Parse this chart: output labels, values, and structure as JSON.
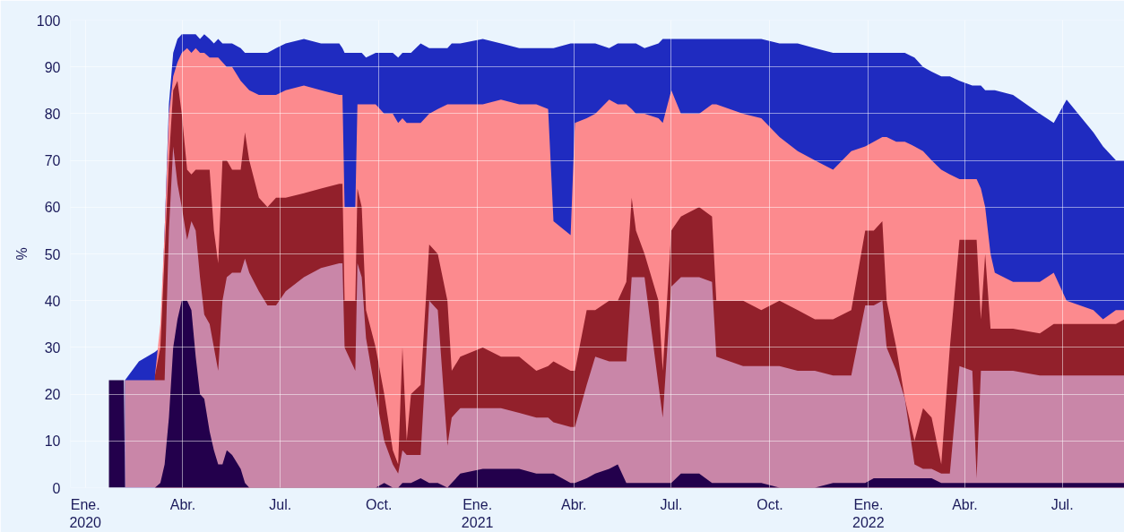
{
  "chart_data": {
    "type": "area",
    "ylabel": "%",
    "ylim": [
      0,
      100
    ],
    "yticks": [
      0,
      10,
      20,
      30,
      40,
      50,
      60,
      70,
      80,
      90,
      100
    ],
    "xlim": [
      "2019-12-18",
      "2022-08-28"
    ],
    "xticks": [
      {
        "value": "2020-01-01",
        "label": "Ene.\n2020"
      },
      {
        "value": "2020-04-01",
        "label": "Abr."
      },
      {
        "value": "2020-07-01",
        "label": "Jul."
      },
      {
        "value": "2020-10-01",
        "label": "Oct."
      },
      {
        "value": "2021-01-01",
        "label": "Ene.\n2021"
      },
      {
        "value": "2021-04-01",
        "label": "Abr."
      },
      {
        "value": "2021-07-01",
        "label": "Jul."
      },
      {
        "value": "2021-10-01",
        "label": "Oct."
      },
      {
        "value": "2022-01-01",
        "label": "Ene.\n2022"
      },
      {
        "value": "2022-04-01",
        "label": "Abr."
      },
      {
        "value": "2022-07-01",
        "label": "Jul."
      }
    ],
    "grid": true,
    "x": [
      "2020-01-23",
      "2020-02-06",
      "2020-02-07",
      "2020-02-20",
      "2020-03-06",
      "2020-03-11",
      "2020-03-15",
      "2020-03-19",
      "2020-03-23",
      "2020-03-27",
      "2020-03-31",
      "2020-04-05",
      "2020-04-09",
      "2020-04-13",
      "2020-04-17",
      "2020-04-21",
      "2020-04-26",
      "2020-04-30",
      "2020-05-04",
      "2020-05-08",
      "2020-05-12",
      "2020-05-17",
      "2020-05-25",
      "2020-05-29",
      "2020-06-02",
      "2020-06-11",
      "2020-06-19",
      "2020-06-27",
      "2020-07-06",
      "2020-07-23",
      "2020-08-08",
      "2020-08-25",
      "2020-08-28",
      "2020-08-30",
      "2020-09-09",
      "2020-09-11",
      "2020-09-15",
      "2020-09-19",
      "2020-09-28",
      "2020-10-06",
      "2020-10-14",
      "2020-10-19",
      "2020-10-23",
      "2020-10-27",
      "2020-10-31",
      "2020-11-09",
      "2020-11-17",
      "2020-11-25",
      "2020-12-04",
      "2020-12-08",
      "2020-12-16",
      "2021-01-06",
      "2021-01-23",
      "2021-02-09",
      "2021-02-25",
      "2021-03-08",
      "2021-03-13",
      "2021-03-29",
      "2021-04-02",
      "2021-04-13",
      "2021-04-21",
      "2021-05-04",
      "2021-05-12",
      "2021-05-20",
      "2021-05-25",
      "2021-05-29",
      "2021-06-06",
      "2021-06-19",
      "2021-06-23",
      "2021-07-01",
      "2021-07-10",
      "2021-07-27",
      "2021-08-08",
      "2021-08-12",
      "2021-09-06",
      "2021-09-23",
      "2021-10-10",
      "2021-10-27",
      "2021-11-12",
      "2021-11-29",
      "2021-12-16",
      "2021-12-29",
      "2022-01-06",
      "2022-01-14",
      "2022-01-18",
      "2022-01-27",
      "2022-02-04",
      "2022-02-13",
      "2022-02-21",
      "2022-03-01",
      "2022-03-10",
      "2022-03-18",
      "2022-03-27",
      "2022-04-08",
      "2022-04-12",
      "2022-04-16",
      "2022-04-20",
      "2022-04-25",
      "2022-04-29",
      "2022-05-16",
      "2022-06-10",
      "2022-06-23",
      "2022-07-05",
      "2022-07-30",
      "2022-08-08",
      "2022-08-20",
      "2022-08-28"
    ],
    "series": [
      {
        "color": "#1f2bc0",
        "values": [
          null,
          null,
          23,
          27,
          29,
          30,
          55,
          82,
          93,
          96,
          97,
          97,
          97,
          97,
          96,
          97,
          96,
          95,
          96,
          95,
          95,
          95,
          94,
          93,
          93,
          93,
          93,
          94,
          95,
          96,
          95,
          95,
          94,
          93,
          93,
          93,
          93,
          92,
          93,
          93,
          93,
          92,
          93,
          93,
          93,
          95,
          94,
          94,
          94,
          95,
          95,
          96,
          95,
          94,
          94,
          94,
          94,
          95,
          95,
          95,
          95,
          94,
          95,
          95,
          95,
          95,
          94,
          95,
          96,
          96,
          96,
          96,
          96,
          96,
          96,
          96,
          95,
          95,
          94,
          93,
          93,
          93,
          93,
          93,
          93,
          93,
          93,
          92,
          90,
          89,
          88,
          88,
          87,
          86,
          86,
          86,
          85,
          85,
          85,
          84,
          80,
          78,
          83,
          76,
          73,
          70,
          70
        ]
      },
      {
        "color": "#fc8a8e",
        "values": [
          null,
          null,
          null,
          null,
          24,
          35,
          55,
          80,
          88,
          91,
          93,
          94,
          93,
          94,
          93,
          93,
          92,
          92,
          92,
          91,
          90,
          90,
          87,
          86,
          85,
          84,
          84,
          84,
          85,
          86,
          85,
          84,
          84,
          60,
          60,
          82,
          82,
          82,
          82,
          80,
          80,
          78,
          79,
          78,
          78,
          78,
          80,
          81,
          82,
          82,
          82,
          82,
          83,
          82,
          82,
          81,
          57,
          54,
          78,
          79,
          80,
          83,
          82,
          82,
          81,
          80,
          80,
          79,
          78,
          85,
          80,
          80,
          82,
          82,
          80,
          79,
          75,
          72,
          70,
          68,
          72,
          73,
          74,
          75,
          75,
          74,
          74,
          73,
          72,
          70,
          68,
          67,
          66,
          66,
          66,
          64,
          60,
          50,
          46,
          44,
          44,
          46,
          40,
          38,
          36,
          38,
          38
        ]
      },
      {
        "color": "#92202b",
        "values": [
          null,
          null,
          null,
          null,
          24,
          30,
          50,
          70,
          85,
          87,
          80,
          68,
          67,
          68,
          68,
          68,
          68,
          55,
          48,
          70,
          70,
          68,
          68,
          76,
          70,
          62,
          60,
          62,
          62,
          63,
          64,
          65,
          65,
          40,
          40,
          64,
          60,
          38,
          30,
          20,
          8,
          5,
          30,
          10,
          20,
          22,
          52,
          50,
          40,
          25,
          28,
          30,
          28,
          28,
          25,
          26,
          27,
          25,
          25,
          38,
          38,
          40,
          40,
          44,
          62,
          55,
          50,
          40,
          25,
          55,
          58,
          60,
          58,
          40,
          40,
          38,
          40,
          38,
          36,
          36,
          38,
          55,
          55,
          57,
          40,
          30,
          19,
          10,
          17,
          15,
          5,
          30,
          53,
          53,
          53,
          36,
          50,
          34,
          34,
          34,
          33,
          35,
          35,
          35,
          35,
          35,
          36
        ]
      },
      {
        "color": "#c986a8",
        "values": [
          null,
          null,
          23,
          23,
          23,
          23,
          23,
          55,
          73,
          65,
          60,
          53,
          57,
          55,
          45,
          37,
          35,
          30,
          25,
          40,
          45,
          46,
          46,
          49,
          46,
          42,
          39,
          39,
          42,
          45,
          47,
          48,
          48,
          30,
          25,
          48,
          45,
          32,
          20,
          10,
          5,
          3,
          8,
          7,
          7,
          7,
          40,
          38,
          9,
          15,
          17,
          17,
          17,
          16,
          15,
          15,
          14,
          13,
          13,
          22,
          28,
          27,
          27,
          27,
          45,
          45,
          45,
          22,
          15,
          43,
          45,
          45,
          44,
          28,
          26,
          26,
          26,
          25,
          25,
          24,
          24,
          39,
          39,
          40,
          30,
          25,
          19,
          5,
          4,
          4,
          3,
          3,
          26,
          25,
          2,
          25,
          25,
          25,
          25,
          25,
          24,
          24,
          24,
          24,
          24,
          24,
          24
        ]
      },
      {
        "color": "#23004c",
        "values": [
          23,
          23,
          0,
          0,
          0,
          1,
          5,
          15,
          30,
          36,
          40,
          40,
          38,
          28,
          20,
          19,
          12,
          8,
          5,
          5,
          8,
          7,
          4,
          1,
          0,
          0,
          0,
          0,
          0,
          0,
          0,
          0,
          0,
          0,
          0,
          0,
          0,
          0,
          0,
          1,
          0,
          0,
          1,
          1,
          1,
          2,
          1,
          1,
          0,
          1,
          3,
          4,
          4,
          4,
          3,
          3,
          3,
          1,
          1,
          2,
          3,
          4,
          5,
          1,
          1,
          1,
          1,
          1,
          1,
          1,
          3,
          3,
          1,
          1,
          1,
          1,
          0,
          0,
          0,
          1,
          1,
          1,
          2,
          2,
          2,
          2,
          2,
          2,
          2,
          2,
          1,
          1,
          1,
          1,
          1,
          1,
          1,
          1,
          1,
          1,
          1,
          1,
          1,
          1,
          1,
          1,
          1
        ]
      }
    ]
  }
}
